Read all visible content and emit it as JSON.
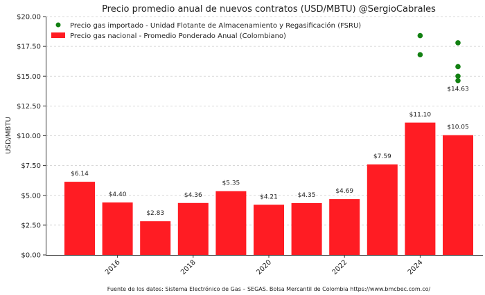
{
  "chart_data": {
    "type": "bar",
    "title": "Precio promedio anual de nuevos contratos (USD/MBTU) @SergioCabrales",
    "xlabel": "",
    "ylabel": "USD/MBTU",
    "ylim": [
      0,
      20
    ],
    "yticks": [
      "$0.00",
      "$2.50",
      "$5.00",
      "$7.50",
      "$10.00",
      "$12.50",
      "$15.00",
      "$17.50",
      "$20.00"
    ],
    "ytick_values": [
      0,
      2.5,
      5,
      7.5,
      10,
      12.5,
      15,
      17.5,
      20
    ],
    "xticks": [
      "2016",
      "2018",
      "2020",
      "2022",
      "2024"
    ],
    "grid": "horizontal dashed",
    "legend_position": "top-left",
    "series": [
      {
        "name": "Precio gas nacional - Promedio Ponderado Anual (Colombiano)",
        "type": "bar",
        "color": "#ff1c23",
        "x": [
          2015,
          2016,
          2017,
          2018,
          2019,
          2020,
          2021,
          2022,
          2023,
          2024,
          2025
        ],
        "values": [
          6.14,
          4.4,
          2.83,
          4.36,
          5.35,
          4.21,
          4.35,
          4.69,
          7.59,
          11.1,
          10.05
        ],
        "labels": [
          "$6.14",
          "$4.40",
          "$2.83",
          "$4.36",
          "$5.35",
          "$4.21",
          "$4.35",
          "$4.69",
          "$7.59",
          "$11.10",
          "$10.05"
        ]
      },
      {
        "name": "Precio gas importado - Unidad Flotante de Almacenamiento y Regasificación (FSRU)",
        "type": "scatter",
        "color": "#128012",
        "x": [
          2024,
          2024,
          2025,
          2025,
          2025,
          2025
        ],
        "values": [
          18.4,
          16.8,
          17.8,
          15.8,
          15.0,
          14.63
        ],
        "labels": [
          "",
          "",
          "",
          "",
          "",
          "$14.63"
        ]
      }
    ],
    "footnote": "Fuente de los datos: Sistema Electrónico de Gas – SEGAS. Bolsa Mercantil de Colombia https://www.bmcbec.com.co/"
  }
}
